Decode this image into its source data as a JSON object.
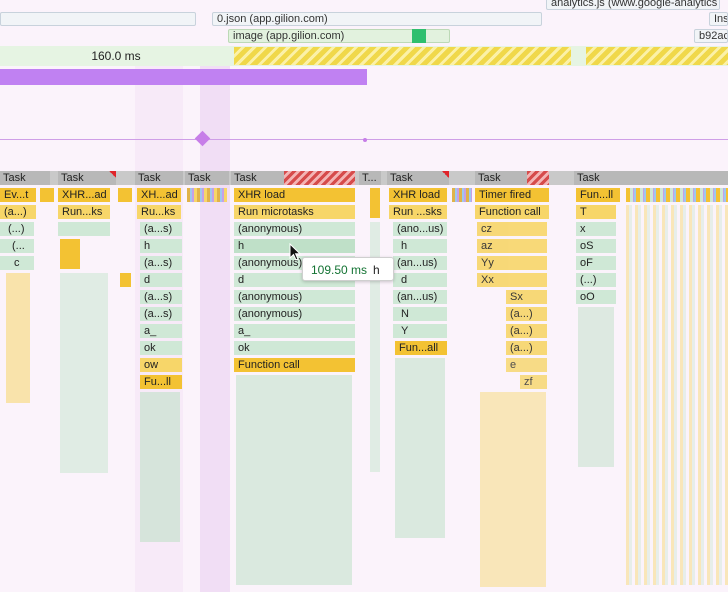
{
  "network": {
    "json_request": "0.json (app.gilion.com)",
    "image_request": "image (app.gilion.com)",
    "analytics_request": "analytics.js (www.google-analytics",
    "right_request_1": "b92ac",
    "right_request_2": "Ins"
  },
  "frames": {
    "duration_label": "160.0 ms"
  },
  "tasks": [
    {
      "label": "Task"
    },
    {
      "label": "Task"
    },
    {
      "label": "Task"
    },
    {
      "label": "Task"
    },
    {
      "label": "Task"
    },
    {
      "label": "T..."
    },
    {
      "label": "Task"
    },
    {
      "label": "Task"
    },
    {
      "label": "Task"
    }
  ],
  "flame": {
    "c1": [
      "Ev...t",
      "(a...)",
      "(...)",
      "(...",
      "c"
    ],
    "c2": [
      "XHR...ad",
      "Run...ks"
    ],
    "c3": [
      "XH...ad",
      "Ru...ks",
      "(a...s)",
      "h",
      "(a...s)",
      "d",
      "(a...s)",
      "(a...s)",
      "a_",
      "ok",
      "ow",
      "Fu...ll"
    ],
    "c4": [
      "XHR load",
      "Run microtasks",
      "(anonymous)",
      "h",
      "(anonymous)",
      "d",
      "(anonymous)",
      "(anonymous)",
      "a_",
      "ok",
      "Function call"
    ],
    "c5": [
      "XHR load",
      "Run ...sks",
      "(ano...us)",
      "h",
      "(an...us)",
      "d",
      "(an...us)",
      "N",
      "Y",
      "Fun...all"
    ],
    "c6": [
      "Timer fired",
      "Function call",
      "cz",
      "az",
      "Yy",
      "Xx",
      "Sx",
      "(a...)",
      "(a...)",
      "(a...)",
      "e",
      "zf"
    ],
    "c7": [
      "Fun...ll",
      "T",
      "x",
      "oS",
      "oF",
      "(...)",
      "oO"
    ]
  },
  "tooltip": {
    "duration": "109.50 ms",
    "name": "h"
  }
}
